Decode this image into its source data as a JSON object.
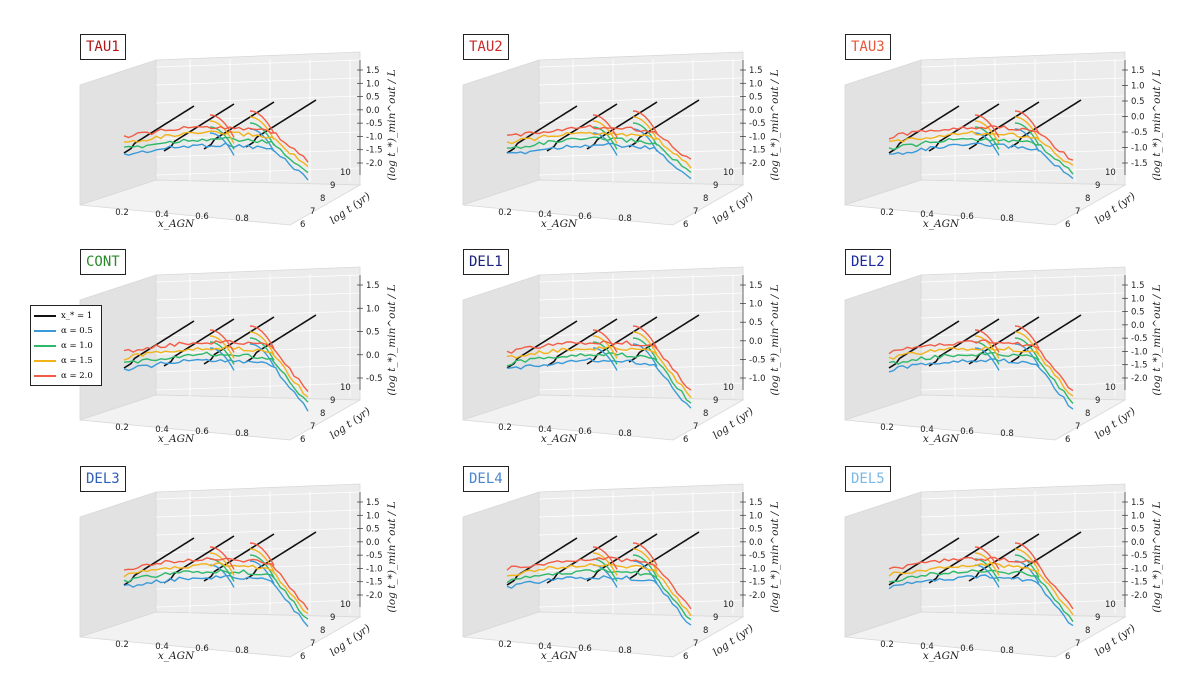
{
  "figure": {
    "legend": {
      "entries": [
        {
          "label": "x_* = 1",
          "color": "#111111"
        },
        {
          "label": "α = 0.5",
          "color": "#3a9ad9"
        },
        {
          "label": "α = 1.0",
          "color": "#2fb86a"
        },
        {
          "label": "α = 1.5",
          "color": "#f2b21a"
        },
        {
          "label": "α = 2.0",
          "color": "#f25c45"
        }
      ]
    }
  },
  "chart_data": [
    {
      "type": "line",
      "title": "TAU1",
      "title_color": "#b01818",
      "xlabel": "x_AGN",
      "ylabel": "log t (yr)",
      "zlabel": "(log t_*)_min^out / L",
      "x_ticks": [
        "0.2",
        "0.4",
        "0.6",
        "0.8"
      ],
      "y_ticks": [
        "6",
        "7",
        "8",
        "9",
        "10"
      ],
      "z_ticks": [
        "1.5",
        "1.0",
        "0.5",
        "0.0",
        "-0.5",
        "-1.0",
        "-1.5",
        "-2.0"
      ],
      "series": [
        {
          "name": "x_* = 1"
        },
        {
          "name": "α = 0.5"
        },
        {
          "name": "α = 1.0"
        },
        {
          "name": "α = 1.5"
        },
        {
          "name": "α = 2.0"
        }
      ]
    },
    {
      "type": "line",
      "title": "TAU2",
      "title_color": "#c92a2a",
      "xlabel": "x_AGN",
      "ylabel": "log t (yr)",
      "zlabel": "(log t_*)_min^out / L",
      "x_ticks": [
        "0.2",
        "0.4",
        "0.6",
        "0.8"
      ],
      "y_ticks": [
        "6",
        "7",
        "8",
        "9",
        "10"
      ],
      "z_ticks": [
        "1.5",
        "1.0",
        "0.5",
        "0.0",
        "-0.5",
        "-1.0",
        "-1.5",
        "-2.0"
      ],
      "series": [
        {
          "name": "x_* = 1"
        },
        {
          "name": "α = 0.5"
        },
        {
          "name": "α = 1.0"
        },
        {
          "name": "α = 1.5"
        },
        {
          "name": "α = 2.0"
        }
      ]
    },
    {
      "type": "line",
      "title": "TAU3",
      "title_color": "#e8573a",
      "xlabel": "x_AGN",
      "ylabel": "log t (yr)",
      "zlabel": "(log t_*)_min^out / L",
      "x_ticks": [
        "0.2",
        "0.4",
        "0.6",
        "0.8"
      ],
      "y_ticks": [
        "6",
        "7",
        "8",
        "9",
        "10"
      ],
      "z_ticks": [
        "1.5",
        "1.0",
        "0.5",
        "0.0",
        "-0.5",
        "-1.0",
        "-1.5"
      ],
      "series": [
        {
          "name": "x_* = 1"
        },
        {
          "name": "α = 0.5"
        },
        {
          "name": "α = 1.0"
        },
        {
          "name": "α = 1.5"
        },
        {
          "name": "α = 2.0"
        }
      ]
    },
    {
      "type": "line",
      "title": "CONT",
      "title_color": "#2a8a2a",
      "xlabel": "x_AGN",
      "ylabel": "log t (yr)",
      "zlabel": "(log t_*)_min^out / L",
      "x_ticks": [
        "0.2",
        "0.4",
        "0.6",
        "0.8"
      ],
      "y_ticks": [
        "6",
        "7",
        "8",
        "9",
        "10"
      ],
      "z_ticks": [
        "1.5",
        "1.0",
        "0.5",
        "0.0",
        "-0.5"
      ],
      "series": [
        {
          "name": "x_* = 1"
        },
        {
          "name": "α = 0.5"
        },
        {
          "name": "α = 1.0"
        },
        {
          "name": "α = 1.5"
        },
        {
          "name": "α = 2.0"
        }
      ]
    },
    {
      "type": "line",
      "title": "DEL1",
      "title_color": "#1a237e",
      "xlabel": "x_AGN",
      "ylabel": "log t (yr)",
      "zlabel": "(log t_*)_min^out / L",
      "x_ticks": [
        "0.2",
        "0.4",
        "0.6",
        "0.8"
      ],
      "y_ticks": [
        "6",
        "7",
        "8",
        "9",
        "10"
      ],
      "z_ticks": [
        "1.5",
        "1.0",
        "0.5",
        "0.0",
        "-0.5",
        "-1.0"
      ],
      "series": [
        {
          "name": "x_* = 1"
        },
        {
          "name": "α = 0.5"
        },
        {
          "name": "α = 1.0"
        },
        {
          "name": "α = 1.5"
        },
        {
          "name": "α = 2.0"
        }
      ]
    },
    {
      "type": "line",
      "title": "DEL2",
      "title_color": "#1a2a9e",
      "xlabel": "x_AGN",
      "ylabel": "log t (yr)",
      "zlabel": "(log t_*)_min^out / L",
      "x_ticks": [
        "0.2",
        "0.4",
        "0.6",
        "0.8"
      ],
      "y_ticks": [
        "6",
        "7",
        "8",
        "9",
        "10"
      ],
      "z_ticks": [
        "1.5",
        "1.0",
        "0.5",
        "0.0",
        "-0.5",
        "-1.0",
        "-1.5",
        "-2.0"
      ],
      "series": [
        {
          "name": "x_* = 1"
        },
        {
          "name": "α = 0.5"
        },
        {
          "name": "α = 1.0"
        },
        {
          "name": "α = 1.5"
        },
        {
          "name": "α = 2.0"
        }
      ]
    },
    {
      "type": "line",
      "title": "DEL3",
      "title_color": "#2f5fb8",
      "xlabel": "x_AGN",
      "ylabel": "log t (yr)",
      "zlabel": "(log t_*)_min^out / L",
      "x_ticks": [
        "0.2",
        "0.4",
        "0.6",
        "0.8"
      ],
      "y_ticks": [
        "6",
        "7",
        "8",
        "9",
        "10"
      ],
      "z_ticks": [
        "1.5",
        "1.0",
        "0.5",
        "0.0",
        "-0.5",
        "-1.0",
        "-1.5",
        "-2.0"
      ],
      "series": [
        {
          "name": "x_* = 1"
        },
        {
          "name": "α = 0.5"
        },
        {
          "name": "α = 1.0"
        },
        {
          "name": "α = 1.5"
        },
        {
          "name": "α = 2.0"
        }
      ]
    },
    {
      "type": "line",
      "title": "DEL4",
      "title_color": "#4a86d0",
      "xlabel": "x_AGN",
      "ylabel": "log t (yr)",
      "zlabel": "(log t_*)_min^out / L",
      "x_ticks": [
        "0.2",
        "0.4",
        "0.6",
        "0.8"
      ],
      "y_ticks": [
        "6",
        "7",
        "8",
        "9",
        "10"
      ],
      "z_ticks": [
        "1.5",
        "1.0",
        "0.5",
        "0.0",
        "-0.5",
        "-1.0",
        "-1.5",
        "-2.0"
      ],
      "series": [
        {
          "name": "x_* = 1"
        },
        {
          "name": "α = 0.5"
        },
        {
          "name": "α = 1.0"
        },
        {
          "name": "α = 1.5"
        },
        {
          "name": "α = 2.0"
        }
      ]
    },
    {
      "type": "line",
      "title": "DEL5",
      "title_color": "#7ab8e6",
      "xlabel": "x_AGN",
      "ylabel": "log t (yr)",
      "zlabel": "(log t_*)_min^out / L",
      "x_ticks": [
        "0.2",
        "0.4",
        "0.6",
        "0.8"
      ],
      "y_ticks": [
        "6",
        "7",
        "8",
        "9",
        "10"
      ],
      "z_ticks": [
        "1.5",
        "1.0",
        "0.5",
        "0.0",
        "-0.5",
        "-1.0",
        "-1.5",
        "-2.0"
      ],
      "series": [
        {
          "name": "x_* = 1"
        },
        {
          "name": "α = 0.5"
        },
        {
          "name": "α = 1.0"
        },
        {
          "name": "α = 1.5"
        },
        {
          "name": "α = 2.0"
        }
      ]
    }
  ]
}
